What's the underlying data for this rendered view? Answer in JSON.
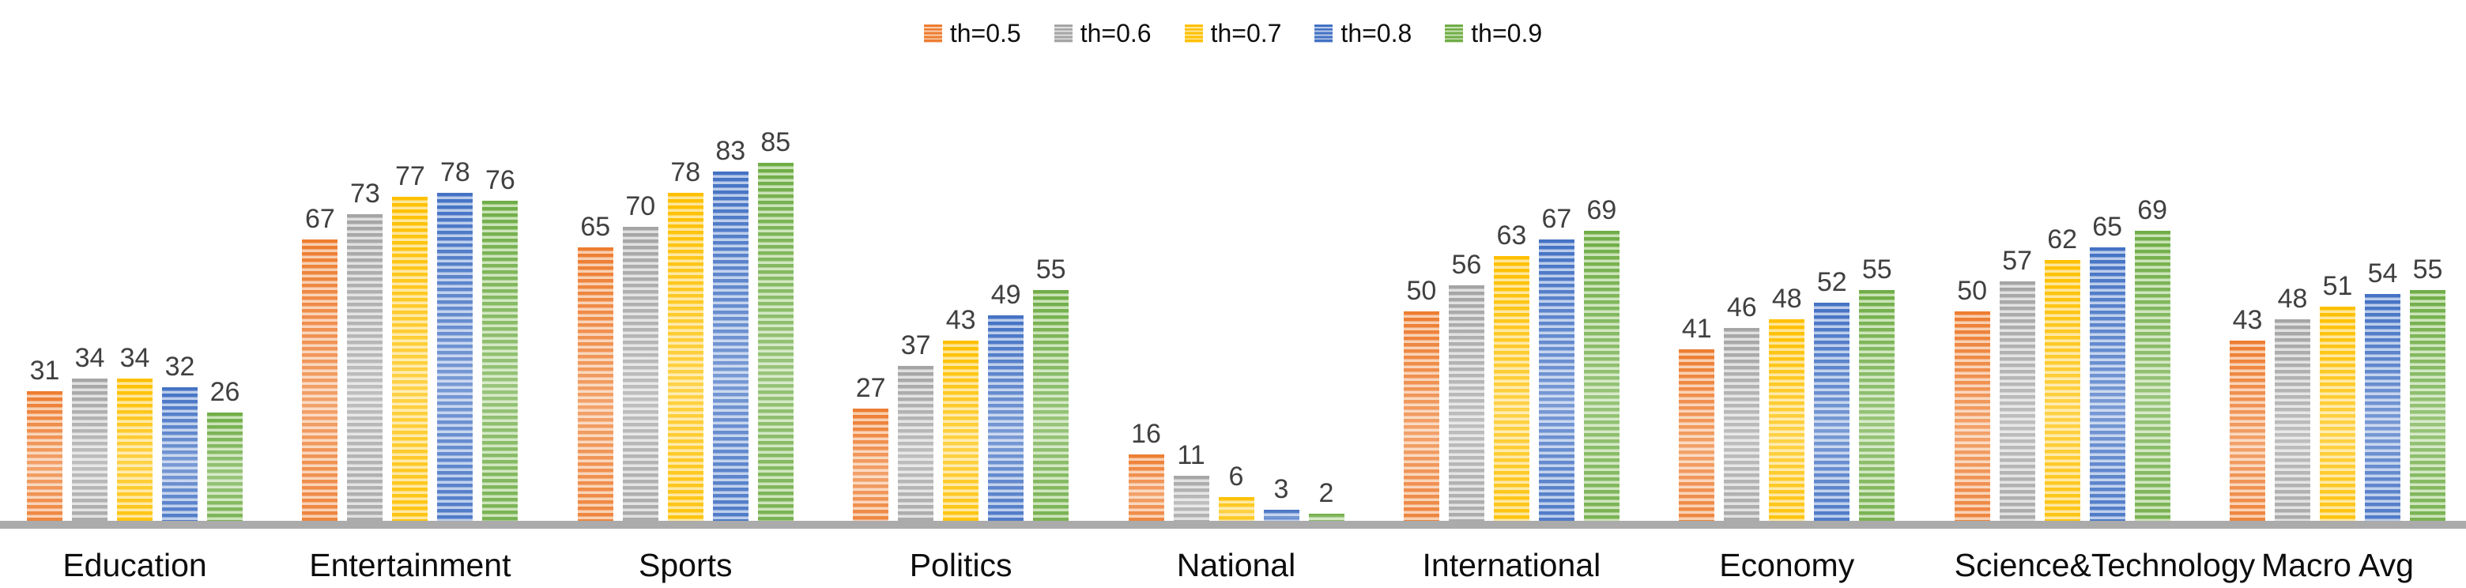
{
  "chart_data": {
    "type": "bar",
    "categories": [
      "Education",
      "Entertainment",
      "Sports",
      "Politics",
      "National",
      "International",
      "Economy",
      "Science&Technology",
      "Macro Avg"
    ],
    "series": [
      {
        "name": "th=0.5",
        "color": "#ED7D31",
        "color_light": "#F9CEAF",
        "values": [
          31,
          67,
          65,
          27,
          16,
          50,
          41,
          50,
          43
        ]
      },
      {
        "name": "th=0.6",
        "color": "#A5A5A5",
        "color_light": "#E0E0E0",
        "values": [
          34,
          73,
          70,
          37,
          11,
          56,
          46,
          57,
          48
        ]
      },
      {
        "name": "th=0.7",
        "color": "#FFC000",
        "color_light": "#FFE699",
        "values": [
          34,
          77,
          78,
          43,
          6,
          63,
          48,
          62,
          51
        ]
      },
      {
        "name": "th=0.8",
        "color": "#4472C4",
        "color_light": "#B9CBEA",
        "values": [
          32,
          78,
          83,
          49,
          3,
          67,
          52,
          65,
          54
        ]
      },
      {
        "name": "th=0.9",
        "color": "#70AD47",
        "color_light": "#C9E3B6",
        "values": [
          26,
          76,
          85,
          55,
          2,
          69,
          55,
          69,
          55
        ]
      }
    ],
    "title": "",
    "xlabel": "",
    "ylabel": "",
    "ylim": [
      0,
      85
    ],
    "grid": false,
    "legend_position": "top-center",
    "value_labels": true,
    "axis_line_color": "#ABABAB",
    "value_label_color": "#404040",
    "category_label_color": "#0D0D0D"
  }
}
